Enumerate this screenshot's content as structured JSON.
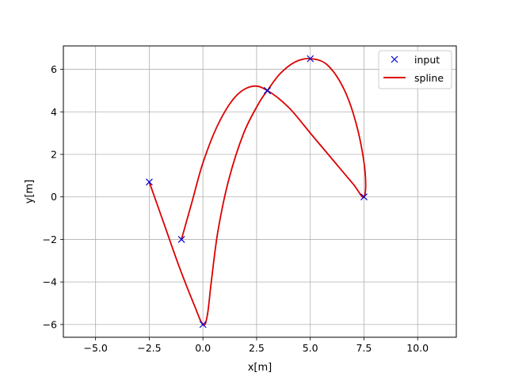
{
  "chart_data": {
    "type": "line",
    "xlabel": "x[m]",
    "ylabel": "y[m]",
    "xlim": [
      -6.5,
      11.8
    ],
    "ylim": [
      -6.6,
      7.1
    ],
    "xticks": [
      -5.0,
      -2.5,
      0.0,
      2.5,
      5.0,
      7.5,
      10.0
    ],
    "xtick_labels": [
      "−5.0",
      "−2.5",
      "0.0",
      "2.5",
      "5.0",
      "7.5",
      "10.0"
    ],
    "yticks": [
      -6,
      -4,
      -2,
      0,
      2,
      4,
      6
    ],
    "ytick_labels": [
      "−6",
      "−4",
      "−2",
      "0",
      "2",
      "4",
      "6"
    ],
    "grid": true,
    "legend_position": "top-right",
    "colors": {
      "input": "#0000cc",
      "spline": "#dd0000",
      "grid": "#b0b0b0"
    },
    "series": [
      {
        "name": "input",
        "style": "markers-x",
        "x": [
          -2.5,
          0.0,
          3.0,
          5.0,
          7.5,
          3.0,
          -1.0
        ],
        "y": [
          0.7,
          -6.0,
          5.0,
          6.5,
          0.0,
          5.0,
          -2.0
        ]
      },
      {
        "name": "spline",
        "style": "line",
        "x": [
          -2.5,
          -1.8,
          -1.1,
          -0.4,
          0.0,
          0.2,
          0.4,
          0.7,
          1.2,
          1.9,
          2.6,
          3.0,
          3.6,
          4.3,
          5.0,
          5.8,
          6.6,
          7.2,
          7.55,
          7.5,
          7.0,
          6.0,
          5.0,
          4.0,
          3.0,
          2.3,
          1.5,
          0.7,
          0.0,
          -0.5,
          -1.0
        ],
        "y": [
          0.7,
          -1.3,
          -3.3,
          -5.1,
          -6.0,
          -5.6,
          -3.9,
          -1.6,
          0.8,
          3.0,
          4.4,
          5.0,
          5.8,
          6.35,
          6.5,
          6.2,
          5.0,
          3.2,
          1.2,
          0.0,
          0.6,
          1.8,
          3.0,
          4.2,
          5.0,
          5.2,
          4.7,
          3.4,
          1.6,
          -0.2,
          -2.0
        ]
      }
    ]
  }
}
